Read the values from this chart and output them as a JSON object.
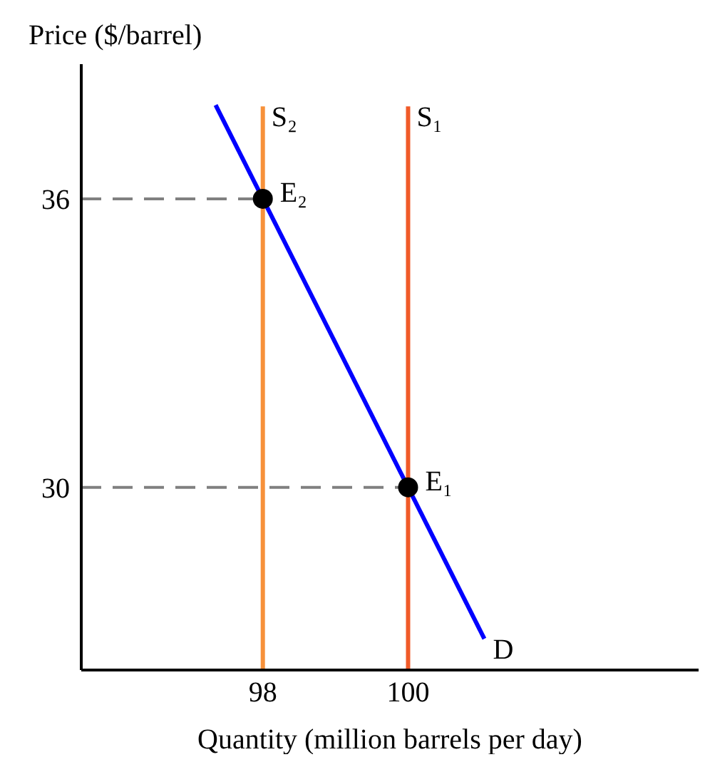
{
  "chart_data": {
    "type": "line",
    "xlabel": "Quantity (million barrels per day)",
    "ylabel": "Price ($/barrel)",
    "xlim": [
      95.5,
      104
    ],
    "ylim": [
      26.2,
      38.8
    ],
    "xticks": [
      98,
      100
    ],
    "yticks": [
      30,
      36
    ],
    "series": [
      {
        "name": "S₂",
        "color": "#f7913a",
        "x": [
          98,
          98
        ],
        "values": [
          26.2,
          37.92
        ]
      },
      {
        "name": "S₁",
        "color": "#f05a28",
        "x": [
          100,
          100
        ],
        "values": [
          26.2,
          37.92
        ]
      },
      {
        "name": "D",
        "color": "#0000ff",
        "x": [
          97.35,
          101.05
        ],
        "values": [
          37.95,
          26.85
        ]
      },
      {
        "color": "#808080",
        "line_style": "dashed",
        "x": [
          95.5,
          98
        ],
        "values": [
          36,
          36
        ]
      },
      {
        "color": "#808080",
        "line_style": "dashed",
        "x": [
          95.5,
          100
        ],
        "values": [
          30,
          30
        ]
      },
      {
        "type": "scatter",
        "name": "E₂",
        "color": "#000000",
        "marker": "circle",
        "x": [
          98
        ],
        "values": [
          36
        ]
      },
      {
        "type": "scatter",
        "name": "E₁",
        "color": "#000000",
        "marker": "circle",
        "x": [
          100
        ],
        "values": [
          30
        ]
      }
    ]
  }
}
